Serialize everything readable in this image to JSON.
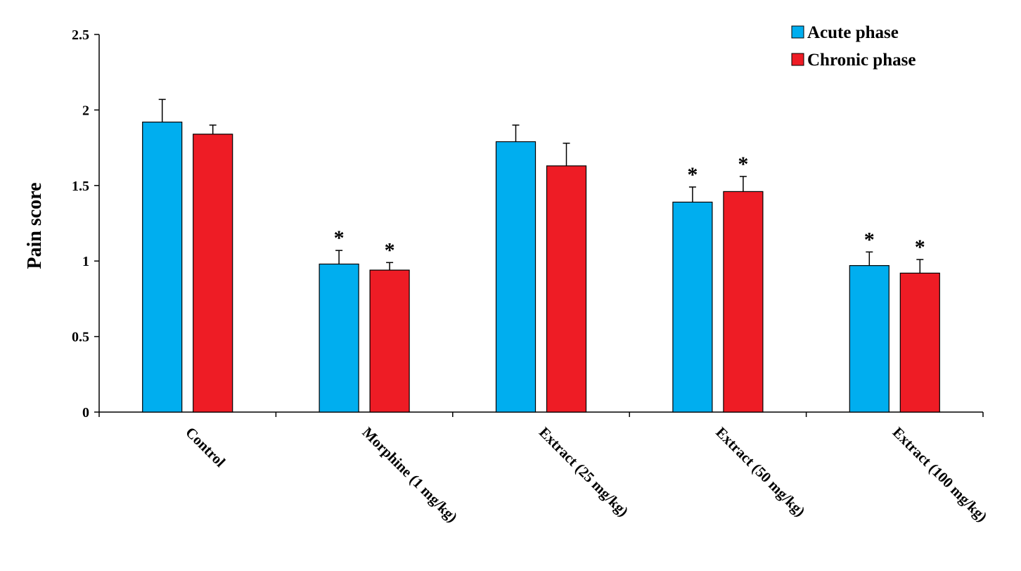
{
  "chart_data": {
    "type": "bar",
    "ylabel": "Pain score",
    "ylim": [
      0,
      2.5
    ],
    "yticks": [
      "0",
      "0.5",
      "1",
      "1.5",
      "2",
      "2.5"
    ],
    "grid": false,
    "legend_position": "top-right",
    "categories": [
      "Control",
      "Morphine (1 mg/kg)",
      "Extract (25 mg/kg)",
      "Extract (50 mg/kg)",
      "Extract (100 mg/kg)"
    ],
    "series": [
      {
        "name": "Acute phase",
        "color": "#00AEEF",
        "values": [
          1.92,
          0.98,
          1.79,
          1.39,
          0.97
        ],
        "errors": [
          0.15,
          0.09,
          0.11,
          0.1,
          0.09
        ],
        "significance": [
          "",
          "*",
          "",
          "*",
          "*"
        ]
      },
      {
        "name": "Chronic phase",
        "color": "#EE1C25",
        "values": [
          1.84,
          0.94,
          1.63,
          1.46,
          0.92
        ],
        "errors": [
          0.06,
          0.05,
          0.15,
          0.1,
          0.09
        ],
        "significance": [
          "",
          "*",
          "",
          "*",
          "*"
        ]
      }
    ]
  }
}
